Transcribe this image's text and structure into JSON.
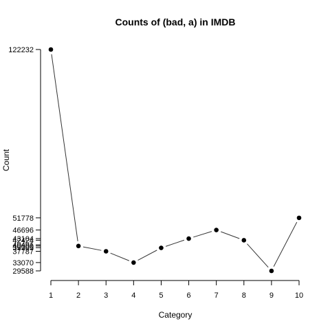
{
  "chart_data": {
    "type": "line",
    "title": "Counts of (bad, a) in IMDB",
    "xlabel": "Category",
    "ylabel": "Count",
    "x": [
      1,
      2,
      3,
      4,
      5,
      6,
      7,
      8,
      9,
      10
    ],
    "values": [
      122232,
      40000,
      37787,
      33070,
      39200,
      43104,
      46696,
      42400,
      29588,
      51778
    ],
    "x_ticks": [
      "1",
      "2",
      "3",
      "4",
      "5",
      "6",
      "7",
      "8",
      "9",
      "10"
    ],
    "y_ticks": [
      {
        "value": 122232,
        "label": "122232"
      },
      {
        "value": 51778,
        "label": "51778"
      },
      {
        "value": 46696,
        "label": "46696"
      },
      {
        "value": 43104,
        "label": "43104"
      },
      {
        "value": 42424,
        "label": "42424"
      },
      {
        "value": 40491,
        "label": "40491"
      },
      {
        "value": 40000,
        "label": "40000"
      },
      {
        "value": 39305,
        "label": "39305"
      },
      {
        "value": 37787,
        "label": "37787"
      },
      {
        "value": 33070,
        "label": "33070"
      },
      {
        "value": 29588,
        "label": "29588"
      }
    ],
    "ylim": [
      29588,
      122232
    ],
    "xlim": [
      1,
      10
    ],
    "grid": false,
    "legend": "none",
    "line_color": "#333333",
    "point_color": "#000000"
  }
}
